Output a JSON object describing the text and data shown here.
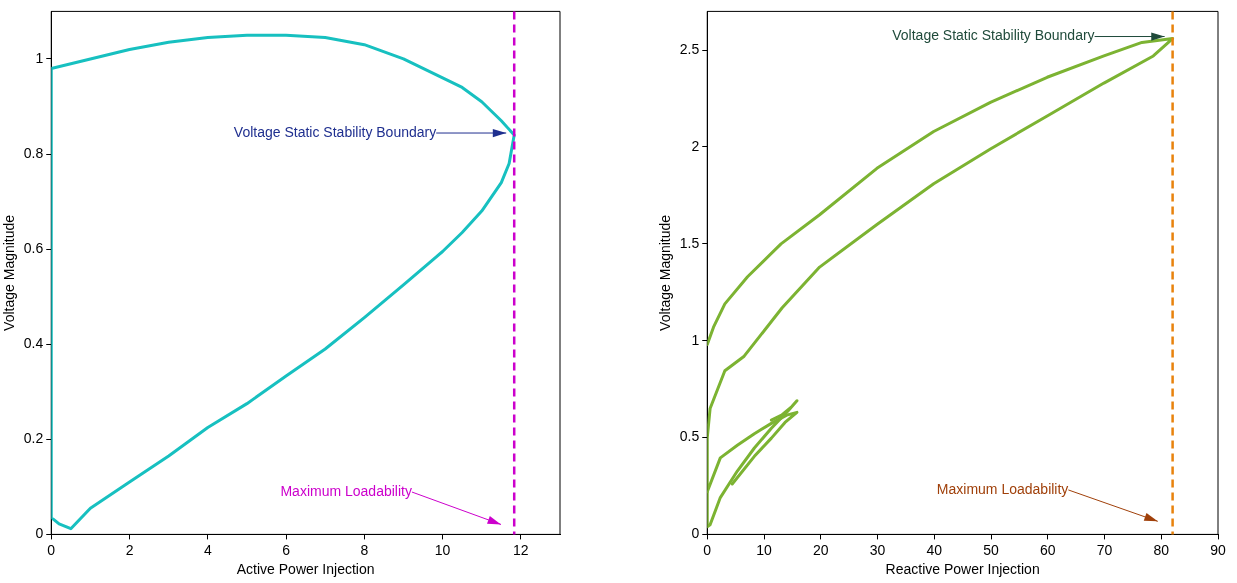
{
  "chart_data": [
    {
      "type": "line",
      "xlabel": "Active Power Injection",
      "ylabel": "Voltage Magnitude",
      "xlim": [
        0,
        13
      ],
      "xticks": [
        0,
        2,
        4,
        6,
        8,
        10,
        12
      ],
      "ylim": [
        0,
        1.1
      ],
      "yticks": [
        0,
        0.2,
        0.4,
        0.6,
        0.8,
        1
      ],
      "grid": false,
      "legend": false,
      "marker": "none",
      "line_style": "solid",
      "series": [
        {
          "color": "#17c0c0",
          "x": [
            0,
            0,
            1,
            2,
            3,
            4,
            5,
            6,
            7,
            8,
            9,
            10,
            10.5,
            11,
            11.5,
            11.83,
            11.7,
            11.5,
            11,
            10.5,
            10,
            9,
            8,
            7,
            6,
            5,
            4,
            3,
            2,
            1,
            0.5,
            0.2,
            0.05
          ],
          "values": [
            0.035,
            0.98,
            1.0,
            1.02,
            1.035,
            1.045,
            1.05,
            1.05,
            1.045,
            1.03,
            1.0,
            0.96,
            0.94,
            0.91,
            0.87,
            0.84,
            0.78,
            0.74,
            0.68,
            0.635,
            0.595,
            0.525,
            0.456,
            0.39,
            0.333,
            0.275,
            0.225,
            0.165,
            0.11,
            0.055,
            0.012,
            0.022,
            0.032
          ]
        }
      ],
      "ref_lines": [
        {
          "axis": "x",
          "value": 11.83,
          "color": "#cc00cc",
          "line_style": "dashed"
        }
      ],
      "annotations": [
        {
          "text": "Voltage Static Stability Boundary",
          "x": 11.83,
          "y": 0.84
        },
        "Maximum Loadability"
      ]
    },
    {
      "type": "line",
      "xlabel": "Reactive Power Injection",
      "ylabel": "Voltage Magnitude",
      "xlim": [
        0,
        90
      ],
      "xticks": [
        0,
        10,
        20,
        30,
        40,
        50,
        60,
        70,
        80,
        90
      ],
      "ylim": [
        0,
        2.7
      ],
      "yticks": [
        0,
        0.5,
        1,
        1.5,
        2,
        2.5
      ],
      "grid": false,
      "legend": false,
      "marker": "none",
      "line_style": "solid",
      "series": [
        {
          "color": "#7cb332",
          "x": [
            0,
            1.1,
            3.1,
            7.1,
            13,
            19.8,
            29.9,
            39.9,
            49.9,
            59.9,
            69.9,
            76.6,
            82,
            78.6,
            69.9,
            59.9,
            49.9,
            39.9,
            29.9,
            19.8,
            13.2,
            6.5,
            3.1,
            0.5,
            0,
            0,
            2.3,
            5.3,
            8.3,
            11.3,
            14,
            15.8,
            13.7,
            11.3,
            8.3,
            4.4
          ],
          "values": [
            0.98,
            1.07,
            1.19,
            1.33,
            1.5,
            1.65,
            1.89,
            2.08,
            2.23,
            2.36,
            2.47,
            2.54,
            2.56,
            2.47,
            2.33,
            2.16,
            1.99,
            1.81,
            1.6,
            1.38,
            1.17,
            0.92,
            0.845,
            0.65,
            0.5,
            0.22,
            0.395,
            0.46,
            0.52,
            0.573,
            0.616,
            0.63,
            0.578,
            0.497,
            0.403,
            0.26
          ]
        },
        {
          "color": "#7cb332",
          "x": [
            0,
            0,
            0.5,
            2.3,
            5.3,
            8.3,
            11.3,
            14.3,
            15.8,
            14.9,
            13.1,
            11.3
          ],
          "values": [
            0.22,
            0.04,
            0.05,
            0.19,
            0.327,
            0.446,
            0.548,
            0.64,
            0.69,
            0.66,
            0.616,
            0.59
          ]
        }
      ],
      "ref_lines": [
        {
          "axis": "x",
          "value": 82,
          "color": "#e8820c",
          "line_style": "dashed"
        }
      ],
      "annotations": [
        {
          "text": "Voltage Static Stability Boundary",
          "x": 82,
          "y": 2.56
        },
        "Maximum Loadability"
      ]
    }
  ]
}
